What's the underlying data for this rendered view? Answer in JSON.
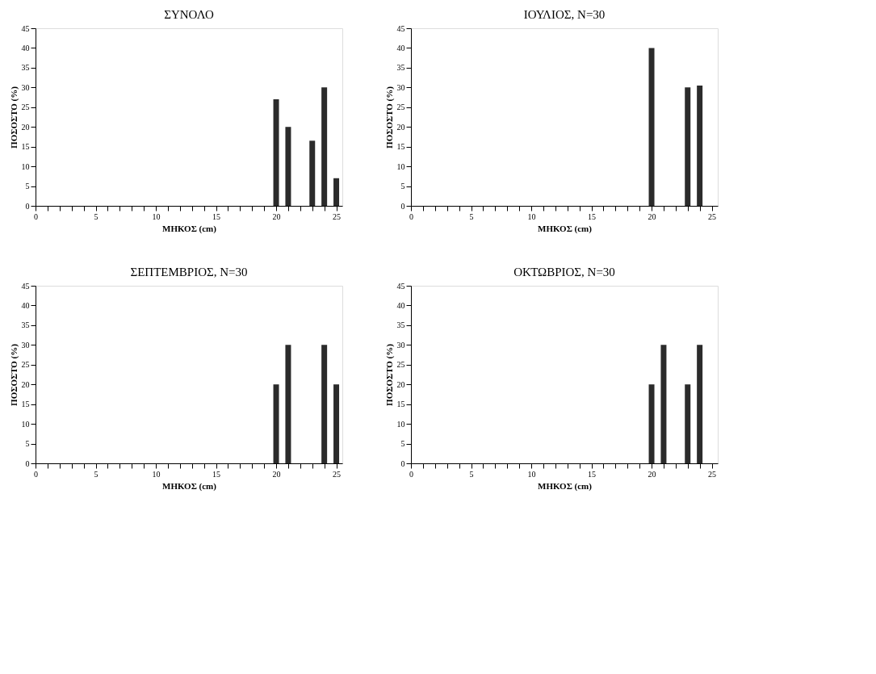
{
  "chart_data": [
    {
      "type": "bar",
      "title": "ΣΥΝΟΛΟ",
      "xlabel": "ΜΗΚΟΣ (cm)",
      "ylabel": "ΠΟΣΟΣΤΟ (%)",
      "x": [
        20,
        21,
        23,
        24,
        25
      ],
      "values": [
        27,
        20,
        16.5,
        30,
        7
      ],
      "color": "#2b2b2b",
      "xlim": [
        0,
        25.5
      ],
      "ylim": [
        0,
        45
      ],
      "yticks": [
        0,
        5,
        10,
        15,
        20,
        25,
        30,
        35,
        40,
        45
      ],
      "xticks": [
        0,
        {
          "value": 1,
          "label": null
        },
        {
          "value": 2,
          "label": null
        },
        {
          "value": 3,
          "label": null
        },
        {
          "value": 4,
          "label": null
        },
        5,
        {
          "value": 6,
          "label": null
        },
        {
          "value": 7,
          "label": null
        },
        {
          "value": 8,
          "label": null
        },
        {
          "value": 9,
          "label": null
        },
        10,
        {
          "value": 11,
          "label": null
        },
        {
          "value": 12,
          "label": null
        },
        {
          "value": 13,
          "label": null
        },
        {
          "value": 14,
          "label": null
        },
        15,
        {
          "value": 16,
          "label": null
        },
        {
          "value": 17,
          "label": null
        },
        {
          "value": 18,
          "label": null
        },
        {
          "value": 19,
          "label": null
        },
        20,
        {
          "value": 21,
          "label": null
        },
        {
          "value": 22,
          "label": null
        },
        {
          "value": 23,
          "label": null
        },
        {
          "value": 24,
          "label": null
        },
        25
      ],
      "grid": false
    },
    {
      "type": "bar",
      "title": "ΙΟΥΛΙΟΣ, N=30",
      "xlabel": "ΜΗΚΟΣ (cm)",
      "ylabel": "ΠΟΣΟΣΤΟ (%)",
      "x": [
        20,
        23,
        24
      ],
      "values": [
        40,
        30,
        30.5
      ],
      "color": "#2b2b2b",
      "xlim": [
        0,
        25.5
      ],
      "ylim": [
        0,
        45
      ],
      "yticks": [
        0,
        5,
        10,
        15,
        20,
        25,
        30,
        35,
        40,
        45
      ],
      "xticks": [
        0,
        {
          "value": 1,
          "label": null
        },
        {
          "value": 2,
          "label": null
        },
        {
          "value": 3,
          "label": null
        },
        {
          "value": 4,
          "label": null
        },
        5,
        {
          "value": 6,
          "label": null
        },
        {
          "value": 7,
          "label": null
        },
        {
          "value": 8,
          "label": null
        },
        {
          "value": 9,
          "label": null
        },
        10,
        {
          "value": 11,
          "label": null
        },
        {
          "value": 12,
          "label": null
        },
        {
          "value": 13,
          "label": null
        },
        {
          "value": 14,
          "label": null
        },
        15,
        {
          "value": 16,
          "label": null
        },
        {
          "value": 17,
          "label": null
        },
        {
          "value": 18,
          "label": null
        },
        {
          "value": 19,
          "label": null
        },
        20,
        {
          "value": 21,
          "label": null
        },
        {
          "value": 22,
          "label": null
        },
        {
          "value": 23,
          "label": null
        },
        {
          "value": 24,
          "label": null
        },
        25
      ],
      "grid": false
    },
    {
      "type": "bar",
      "title": "ΣΕΠΤΕΜΒΡΙΟΣ, N=30",
      "xlabel": "ΜΗΚΟΣ (cm)",
      "ylabel": "ΠΟΣΟΣΤΟ (%)",
      "x": [
        20,
        21,
        24,
        25
      ],
      "values": [
        20,
        30,
        30,
        20
      ],
      "color": "#2b2b2b",
      "xlim": [
        0,
        25.5
      ],
      "ylim": [
        0,
        45
      ],
      "yticks": [
        0,
        5,
        10,
        15,
        20,
        25,
        30,
        35,
        40,
        45
      ],
      "xticks": [
        0,
        {
          "value": 1,
          "label": null
        },
        {
          "value": 2,
          "label": null
        },
        {
          "value": 3,
          "label": null
        },
        {
          "value": 4,
          "label": null
        },
        5,
        {
          "value": 6,
          "label": null
        },
        {
          "value": 7,
          "label": null
        },
        {
          "value": 8,
          "label": null
        },
        {
          "value": 9,
          "label": null
        },
        10,
        {
          "value": 11,
          "label": null
        },
        {
          "value": 12,
          "label": null
        },
        {
          "value": 13,
          "label": null
        },
        {
          "value": 14,
          "label": null
        },
        15,
        {
          "value": 16,
          "label": null
        },
        {
          "value": 17,
          "label": null
        },
        {
          "value": 18,
          "label": null
        },
        {
          "value": 19,
          "label": null
        },
        20,
        {
          "value": 21,
          "label": null
        },
        {
          "value": 22,
          "label": null
        },
        {
          "value": 23,
          "label": null
        },
        {
          "value": 24,
          "label": null
        },
        25
      ],
      "grid": false
    },
    {
      "type": "bar",
      "title": "ΟΚΤΩΒΡΙΟΣ, N=30",
      "xlabel": "ΜΗΚΟΣ (cm)",
      "ylabel": "ΠΟΣΟΣΤΟ (%)",
      "x": [
        20,
        21,
        23,
        24
      ],
      "values": [
        20,
        30,
        20,
        30
      ],
      "color": "#2b2b2b",
      "xlim": [
        0,
        25.5
      ],
      "ylim": [
        0,
        45
      ],
      "yticks": [
        0,
        5,
        10,
        15,
        20,
        25,
        30,
        35,
        40,
        45
      ],
      "xticks": [
        0,
        {
          "value": 1,
          "label": null
        },
        {
          "value": 2,
          "label": null
        },
        {
          "value": 3,
          "label": null
        },
        {
          "value": 4,
          "label": null
        },
        5,
        {
          "value": 6,
          "label": null
        },
        {
          "value": 7,
          "label": null
        },
        {
          "value": 8,
          "label": null
        },
        {
          "value": 9,
          "label": null
        },
        10,
        {
          "value": 11,
          "label": null
        },
        {
          "value": 12,
          "label": null
        },
        {
          "value": 13,
          "label": null
        },
        {
          "value": 14,
          "label": null
        },
        15,
        {
          "value": 16,
          "label": null
        },
        {
          "value": 17,
          "label": null
        },
        {
          "value": 18,
          "label": null
        },
        {
          "value": 19,
          "label": null
        },
        20,
        {
          "value": 21,
          "label": null
        },
        {
          "value": 22,
          "label": null
        },
        {
          "value": 23,
          "label": null
        },
        {
          "value": 24,
          "label": null
        },
        25
      ],
      "grid": false
    }
  ]
}
